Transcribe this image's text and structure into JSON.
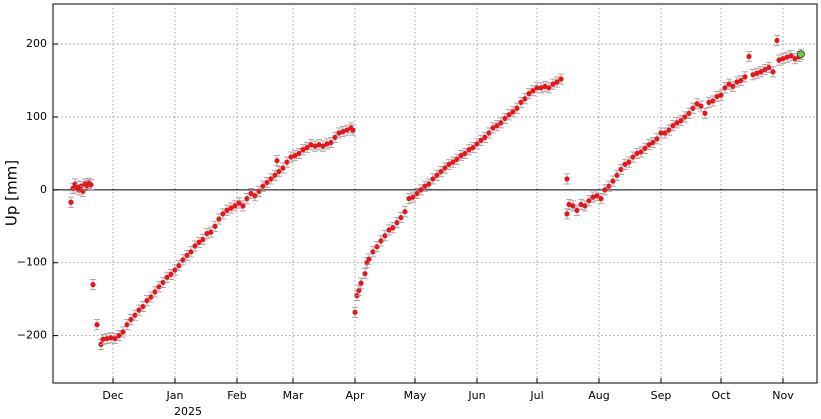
{
  "chart_data": {
    "type": "scatter",
    "ylabel": "Up [mm]",
    "year_label": "2025",
    "xlim": [
      0,
      382
    ],
    "ylim": [
      -265,
      255
    ],
    "xticks": [
      {
        "value": 30,
        "label": "Dec"
      },
      {
        "value": 61,
        "label": "Jan"
      },
      {
        "value": 92,
        "label": "Feb"
      },
      {
        "value": 120,
        "label": "Mar"
      },
      {
        "value": 151,
        "label": "Apr"
      },
      {
        "value": 181,
        "label": "May"
      },
      {
        "value": 212,
        "label": "Jun"
      },
      {
        "value": 242,
        "label": "Jul"
      },
      {
        "value": 273,
        "label": "Aug"
      },
      {
        "value": 304,
        "label": "Sep"
      },
      {
        "value": 334,
        "label": "Oct"
      },
      {
        "value": 365,
        "label": "Nov"
      }
    ],
    "yticks": [
      {
        "value": -200,
        "label": "−200"
      },
      {
        "value": -100,
        "label": "−100"
      },
      0,
      100,
      200
    ],
    "grid": true,
    "hline": 0,
    "error": 7,
    "series": [
      {
        "color": "#e8141a",
        "x": [
          9,
          10,
          11,
          12,
          13,
          14,
          15,
          16,
          17,
          18,
          19,
          20,
          22,
          24,
          25,
          27,
          29,
          31,
          33,
          35,
          37,
          39,
          41,
          43,
          45,
          47,
          49,
          51,
          53,
          55,
          57,
          59,
          61,
          63,
          65,
          67,
          69,
          71,
          73,
          75,
          77,
          79,
          81,
          83,
          85,
          87,
          89,
          91,
          93,
          95,
          97,
          99,
          101,
          103,
          105,
          107,
          109,
          111,
          112,
          113,
          115,
          117,
          119,
          121,
          123,
          125,
          127,
          129,
          131,
          133,
          135,
          137,
          139,
          141,
          143,
          145,
          147,
          149,
          150,
          151,
          152,
          153,
          154,
          156,
          157,
          158,
          160,
          162,
          164,
          166,
          168,
          170,
          172,
          174,
          176,
          178,
          180,
          182,
          184,
          186,
          188,
          190,
          192,
          194,
          196,
          198,
          200,
          202,
          204,
          206,
          208,
          210,
          212,
          214,
          216,
          218,
          220,
          222,
          224,
          226,
          228,
          230,
          232,
          234,
          236,
          238,
          240,
          242,
          244,
          246,
          248,
          250,
          252,
          254,
          257,
          257,
          258,
          260,
          262,
          264,
          266,
          268,
          270,
          272,
          274,
          276,
          278,
          280,
          282,
          284,
          286,
          288,
          290,
          292,
          294,
          296,
          298,
          300,
          302,
          304,
          306,
          308,
          310,
          312,
          314,
          316,
          318,
          320,
          322,
          324,
          326,
          328,
          330,
          332,
          334,
          336,
          338,
          340,
          342,
          344,
          346,
          348,
          350,
          352,
          354,
          356,
          358,
          360,
          362,
          363,
          365,
          367,
          369,
          371,
          373
        ],
        "values": [
          -17,
          2,
          8,
          4,
          0,
          5,
          -2,
          8,
          6,
          9,
          7,
          -130,
          -185,
          -212,
          -205,
          -204,
          -203,
          -204,
          -200,
          -195,
          -185,
          -178,
          -172,
          -165,
          -160,
          -152,
          -147,
          -140,
          -133,
          -127,
          -120,
          -116,
          -110,
          -104,
          -96,
          -90,
          -85,
          -77,
          -72,
          -68,
          -60,
          -58,
          -50,
          -40,
          -33,
          -28,
          -25,
          -22,
          -18,
          -22,
          -12,
          -5,
          -8,
          -2,
          5,
          10,
          15,
          20,
          40,
          25,
          30,
          38,
          45,
          47,
          50,
          55,
          58,
          62,
          60,
          62,
          60,
          63,
          65,
          72,
          78,
          80,
          82,
          85,
          82,
          -168,
          -145,
          -138,
          -128,
          -115,
          -100,
          -95,
          -85,
          -78,
          -70,
          -63,
          -55,
          -52,
          -45,
          -38,
          -30,
          -12,
          -10,
          -5,
          0,
          5,
          8,
          15,
          20,
          25,
          30,
          35,
          38,
          42,
          47,
          50,
          55,
          58,
          63,
          68,
          72,
          78,
          85,
          88,
          92,
          98,
          103,
          107,
          112,
          120,
          125,
          132,
          136,
          140,
          140,
          142,
          140,
          145,
          148,
          152,
          15,
          -33,
          -20,
          -22,
          -28,
          -20,
          -22,
          -15,
          -10,
          -8,
          -12,
          0,
          5,
          12,
          20,
          28,
          35,
          38,
          45,
          50,
          52,
          57,
          62,
          65,
          70,
          78,
          78,
          82,
          88,
          92,
          95,
          100,
          105,
          112,
          118,
          115,
          105,
          120,
          122,
          128,
          130,
          140,
          145,
          142,
          148,
          150,
          155,
          183,
          158,
          160,
          162,
          165,
          168,
          162,
          205,
          178,
          180,
          182,
          184,
          180,
          183
        ]
      },
      {
        "color": "#6cd04a",
        "x": [
          374
        ],
        "values": [
          186
        ]
      }
    ]
  }
}
